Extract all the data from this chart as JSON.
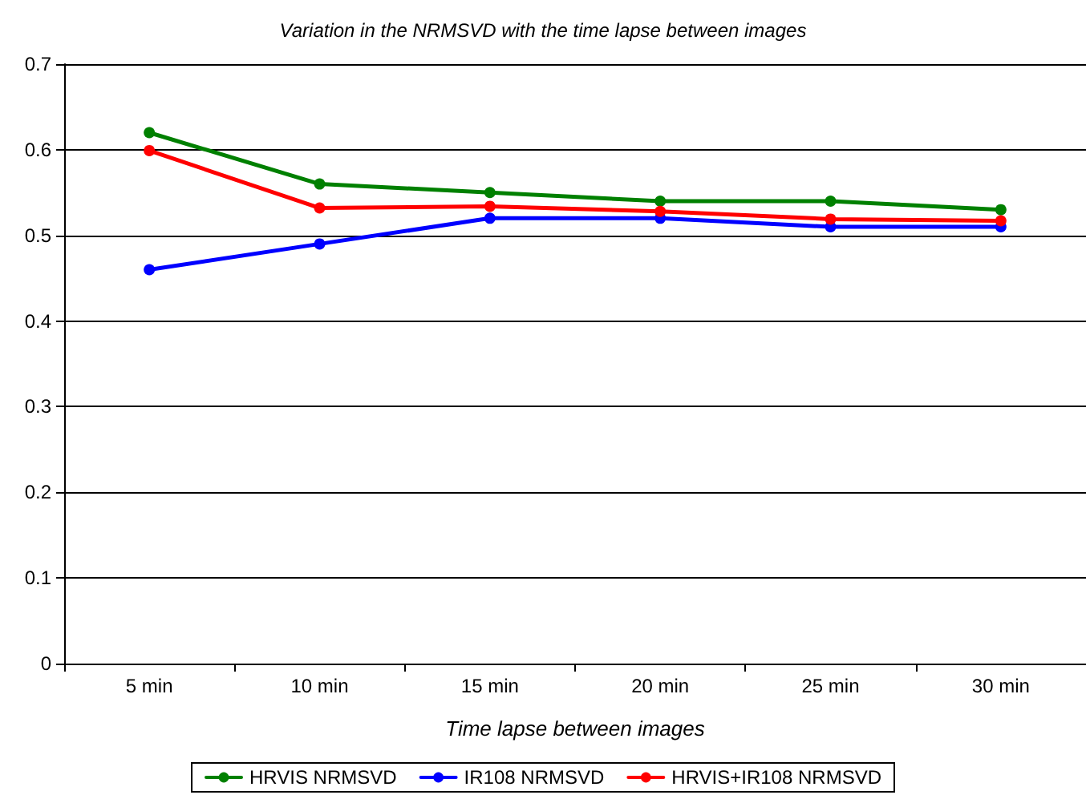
{
  "chart_data": {
    "type": "line",
    "title": "Variation in the NRMSVD with the time lapse between images",
    "xlabel": "Time lapse between images",
    "categories": [
      "5 min",
      "10 min",
      "15 min",
      "20 min",
      "25 min",
      "30 min"
    ],
    "series": [
      {
        "name": "HRVIS NRMSVD",
        "color": "#008000",
        "values": [
          0.62,
          0.56,
          0.55,
          0.54,
          0.54,
          0.53
        ]
      },
      {
        "name": "IR108 NRMSVD",
        "color": "#0000ff",
        "values": [
          0.46,
          0.49,
          0.52,
          0.52,
          0.51,
          0.51
        ]
      },
      {
        "name": "HRVIS+IR108 NRMSVD",
        "color": "#ff0000",
        "values": [
          0.599,
          0.532,
          0.534,
          0.528,
          0.519,
          0.517
        ]
      }
    ],
    "ylim": [
      0,
      0.7
    ],
    "yticks": [
      0,
      0.1,
      0.2,
      0.3,
      0.4,
      0.5,
      0.6,
      0.7
    ],
    "grid": "y",
    "legend": "bottom",
    "marker": "circle",
    "line_style": "solid"
  }
}
